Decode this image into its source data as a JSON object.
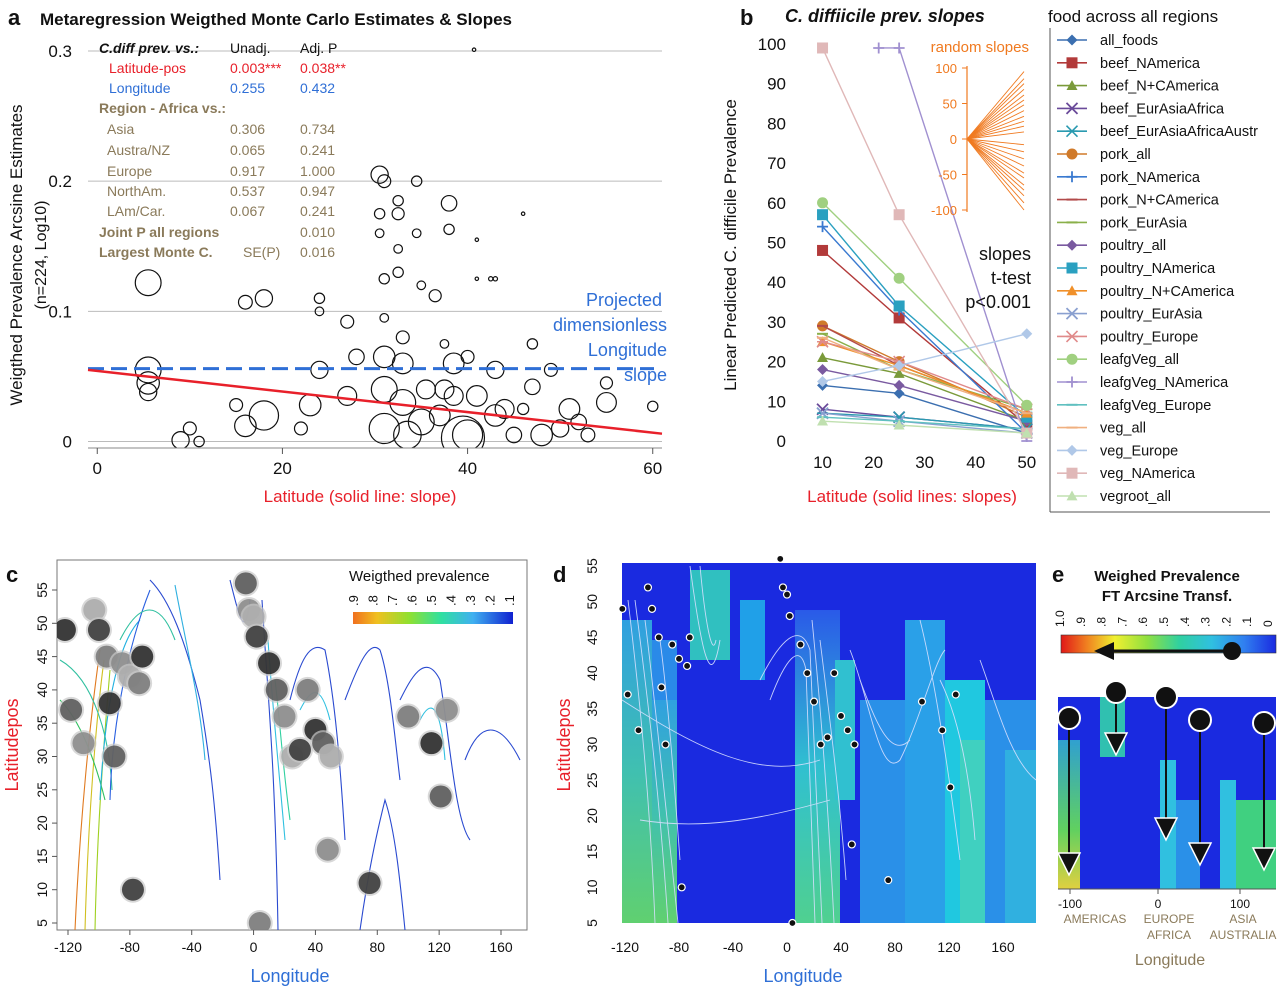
{
  "panel_a": {
    "letter": "a",
    "title": "Metaregression Weigthed Monte Carlo Estimates & Slopes",
    "ylabel1": "Weigthed Prevalence Arcsine  Estimates",
    "ylabel2": "(n=224, Log10)",
    "xlabel": "Latitude (solid line: slope)",
    "xticks": [
      "0",
      "20",
      "40",
      "60"
    ],
    "yticks": [
      "0",
      "0.1",
      "0.2",
      "0.3"
    ],
    "table": {
      "header": [
        "C.diff prev. vs.:",
        "Unadj.",
        "Adj. P"
      ],
      "rows": [
        {
          "label": "Latitude-pos",
          "unadj": "0.003***",
          "adj": "0.038**",
          "color": "#e8202a"
        },
        {
          "label": "Longitude",
          "unadj": "0.255",
          "adj": "0.432",
          "color": "#2f6fd6"
        }
      ],
      "region_header": "Region - Africa vs.:",
      "region_rows": [
        {
          "label": "Asia",
          "unadj": "0.306",
          "adj": "0.734"
        },
        {
          "label": "Austra/NZ",
          "unadj": "0.065",
          "adj": "0.241"
        },
        {
          "label": "Europe",
          "unadj": "0.917",
          "adj": "1.000"
        },
        {
          "label": "NorthAm.",
          "unadj": "0.537",
          "adj": "0.947"
        },
        {
          "label": "LAm/Car.",
          "unadj": "0.067",
          "adj": "0.241"
        }
      ],
      "joint_label": "Joint P all regions",
      "joint_value": "0.010",
      "mc_label": "Largest Monte C.",
      "mc_sub": "SE(P)",
      "mc_value": "0.016",
      "text_color": "#8a7a5a"
    },
    "annotation": [
      "Projected",
      "dimensionless",
      "Longitude",
      "slope"
    ]
  },
  "panel_b": {
    "letter": "b",
    "title": "C. diffiicile prev. slopes",
    "ylabel": "Linear Predicted C. difficile Prevalence",
    "xlabel": "Latitude (solid lines: slopes)",
    "xticks": [
      "10",
      "20",
      "30",
      "40",
      "50"
    ],
    "yticks": [
      "0",
      "10",
      "20",
      "30",
      "40",
      "50",
      "60",
      "70",
      "80",
      "90",
      "100"
    ],
    "inset_title": "random slopes",
    "inset_ticks": [
      "100",
      "50",
      "0",
      "-50",
      "-100"
    ],
    "ttest": [
      "slopes",
      "t-test",
      "p<0.001"
    ]
  },
  "legend": {
    "title": "food across all regions",
    "items": [
      {
        "name": "all_foods",
        "color": "#3b6fb0",
        "marker": "diamond"
      },
      {
        "name": "beef_NAmerica",
        "color": "#b23a3a",
        "marker": "square"
      },
      {
        "name": "beef_N+CAmerica",
        "color": "#7a9a3a",
        "marker": "triangle"
      },
      {
        "name": "beef_EurAsiaAfrica",
        "color": "#6a4a9a",
        "marker": "x"
      },
      {
        "name": "beef_EurAsiaAfricaAustr",
        "color": "#2a9ab0",
        "marker": "star"
      },
      {
        "name": "pork_all",
        "color": "#d07a2a",
        "marker": "circle"
      },
      {
        "name": "pork_NAmerica",
        "color": "#3a7ad0",
        "marker": "plus"
      },
      {
        "name": "pork_N+CAmerica",
        "color": "#b24a4a",
        "marker": "dash"
      },
      {
        "name": "pork_EurAsia",
        "color": "#8ab04a",
        "marker": "dash"
      },
      {
        "name": "poultry_all",
        "color": "#7a5aa0",
        "marker": "diamond"
      },
      {
        "name": "poultry_NAmerica",
        "color": "#2aa0c0",
        "marker": "square"
      },
      {
        "name": "poultry_N+CAmerica",
        "color": "#f0902a",
        "marker": "triangle"
      },
      {
        "name": "poultry_EurAsia",
        "color": "#8aa0d0",
        "marker": "x"
      },
      {
        "name": "poultry_Europe",
        "color": "#e08a8a",
        "marker": "star"
      },
      {
        "name": "leafgVeg_all",
        "color": "#a0d080",
        "marker": "circle"
      },
      {
        "name": "leafgVeg_NAmerica",
        "color": "#a090d0",
        "marker": "plus"
      },
      {
        "name": "leafgVeg_Europe",
        "color": "#60c0c0",
        "marker": "dash"
      },
      {
        "name": "veg_all",
        "color": "#f0b080",
        "marker": "dash"
      },
      {
        "name": "veg_Europe",
        "color": "#b0c8e8",
        "marker": "diamond"
      },
      {
        "name": "veg_NAmerica",
        "color": "#e0b8b8",
        "marker": "square"
      },
      {
        "name": "vegroot_all",
        "color": "#c0e0b0",
        "marker": "triangle"
      }
    ]
  },
  "panel_c": {
    "letter": "c",
    "legend_title": "Weigthed prevalence",
    "legend_ticks": [
      ".9",
      ".8",
      ".7",
      ".6",
      ".5",
      ".4",
      ".3",
      ".2",
      ".1"
    ],
    "ylabel": "Latitudepos",
    "xlabel": "Longitude",
    "xticks": [
      "-120",
      "-80",
      "-40",
      "0",
      "40",
      "80",
      "120",
      "160"
    ],
    "yticks": [
      "5",
      "10",
      "15",
      "20",
      "25",
      "30",
      "35",
      "40",
      "45",
      "50",
      "55"
    ]
  },
  "panel_d": {
    "letter": "d",
    "ylabel": "Latitudepos",
    "xlabel": "Longitude",
    "xticks": [
      "-120",
      "-80",
      "-40",
      "0",
      "40",
      "80",
      "120",
      "160"
    ],
    "yticks": [
      "5",
      "10",
      "15",
      "20",
      "25",
      "30",
      "35",
      "40",
      "45",
      "50",
      "55"
    ]
  },
  "panel_e": {
    "letter": "e",
    "title": [
      "Weighed Prevalence",
      "FT Arcsine Transf."
    ],
    "scale_ticks": [
      "1.0",
      ".9",
      ".8",
      ".7",
      ".6",
      ".5",
      ".4",
      ".3",
      ".2",
      ".1",
      "0"
    ],
    "xticks": [
      "-100",
      "0",
      "100"
    ],
    "regions": [
      "AMERICAS",
      "EUROPE",
      "AFRICA",
      "ASIA",
      "AUSTRALIA"
    ],
    "xlabel": "Longitude"
  },
  "chart_data": [
    {
      "type": "scatter",
      "title": "Metaregression Weigthed Monte Carlo Estimates & Slopes",
      "xlabel": "Latitude (solid line: slope)",
      "ylabel": "Weigthed Prevalence Arcsine Estimates (n=224, Log10)",
      "xlim": [
        -1,
        61
      ],
      "ylim": [
        -0.005,
        0.31
      ],
      "grid": true,
      "slope_line": {
        "x": [
          -1,
          61
        ],
        "y": [
          0.055,
          0.006
        ],
        "color": "#e8202a"
      },
      "projected_longitude_slope": {
        "y": 0.056,
        "color": "#2f6fd6"
      },
      "points": [
        {
          "x": 5.5,
          "y": 0.122,
          "w": 3
        },
        {
          "x": 5.5,
          "y": 0.055,
          "w": 3
        },
        {
          "x": 5.5,
          "y": 0.045,
          "w": 2.6
        },
        {
          "x": 5.5,
          "y": 0.038,
          "w": 2
        },
        {
          "x": 9,
          "y": 0.001,
          "w": 2
        },
        {
          "x": 10,
          "y": 0.01,
          "w": 1.5
        },
        {
          "x": 11,
          "y": 0.0,
          "w": 1.2
        },
        {
          "x": 16,
          "y": 0.107,
          "w": 1.6
        },
        {
          "x": 18,
          "y": 0.11,
          "w": 2
        },
        {
          "x": 15,
          "y": 0.028,
          "w": 1.5
        },
        {
          "x": 16,
          "y": 0.012,
          "w": 2.5
        },
        {
          "x": 18,
          "y": 0.02,
          "w": 3.4
        },
        {
          "x": 24,
          "y": 0.11,
          "w": 1.2
        },
        {
          "x": 24,
          "y": 0.1,
          "w": 1
        },
        {
          "x": 24,
          "y": 0.055,
          "w": 2
        },
        {
          "x": 23,
          "y": 0.028,
          "w": 2.5
        },
        {
          "x": 22,
          "y": 0.01,
          "w": 1.5
        },
        {
          "x": 27,
          "y": 0.092,
          "w": 1.5
        },
        {
          "x": 28,
          "y": 0.065,
          "w": 1.8
        },
        {
          "x": 27,
          "y": 0.035,
          "w": 2.2
        },
        {
          "x": 30.5,
          "y": 0.205,
          "w": 2
        },
        {
          "x": 31,
          "y": 0.2,
          "w": 1.5
        },
        {
          "x": 30.5,
          "y": 0.175,
          "w": 1.2
        },
        {
          "x": 30.5,
          "y": 0.16,
          "w": 1
        },
        {
          "x": 31,
          "y": 0.125,
          "w": 1.2
        },
        {
          "x": 31,
          "y": 0.095,
          "w": 1
        },
        {
          "x": 31,
          "y": 0.065,
          "w": 2.5
        },
        {
          "x": 31,
          "y": 0.04,
          "w": 3
        },
        {
          "x": 31,
          "y": 0.01,
          "w": 3.5
        },
        {
          "x": 32.5,
          "y": 0.185,
          "w": 1.2
        },
        {
          "x": 32.5,
          "y": 0.175,
          "w": 1.4
        },
        {
          "x": 32.5,
          "y": 0.148,
          "w": 1
        },
        {
          "x": 32.5,
          "y": 0.13,
          "w": 1.2
        },
        {
          "x": 33,
          "y": 0.08,
          "w": 1.5
        },
        {
          "x": 33,
          "y": 0.06,
          "w": 2.4
        },
        {
          "x": 33,
          "y": 0.03,
          "w": 3
        },
        {
          "x": 33.5,
          "y": 0.005,
          "w": 3.2
        },
        {
          "x": 34.5,
          "y": 0.2,
          "w": 1.2
        },
        {
          "x": 34.5,
          "y": 0.16,
          "w": 1
        },
        {
          "x": 35,
          "y": 0.12,
          "w": 1
        },
        {
          "x": 35.5,
          "y": 0.04,
          "w": 2.2
        },
        {
          "x": 35,
          "y": 0.015,
          "w": 3
        },
        {
          "x": 36.5,
          "y": 0.112,
          "w": 1.4
        },
        {
          "x": 37.5,
          "y": 0.075,
          "w": 1
        },
        {
          "x": 37.5,
          "y": 0.04,
          "w": 2.2
        },
        {
          "x": 37,
          "y": 0.02,
          "w": 2.4
        },
        {
          "x": 38,
          "y": 0.183,
          "w": 1.8
        },
        {
          "x": 38,
          "y": 0.163,
          "w": 1.2
        },
        {
          "x": 38.5,
          "y": 0.06,
          "w": 2.4
        },
        {
          "x": 38.5,
          "y": 0.035,
          "w": 2.2
        },
        {
          "x": 39.5,
          "y": 0.003,
          "w": 5
        },
        {
          "x": 40,
          "y": 0.005,
          "w": 3.5
        },
        {
          "x": 41,
          "y": 0.035,
          "w": 2.4
        },
        {
          "x": 40,
          "y": 0.065,
          "w": 1.5
        },
        {
          "x": 40.7,
          "y": 0.301,
          "w": 0.4
        },
        {
          "x": 41,
          "y": 0.125,
          "w": 0.4
        },
        {
          "x": 41,
          "y": 0.155,
          "w": 0.4
        },
        {
          "x": 42.5,
          "y": 0.125,
          "w": 0.5
        },
        {
          "x": 43,
          "y": 0.125,
          "w": 0.5
        },
        {
          "x": 43,
          "y": 0.055,
          "w": 2
        },
        {
          "x": 43,
          "y": 0.02,
          "w": 2.5
        },
        {
          "x": 44,
          "y": 0.025,
          "w": 2.2
        },
        {
          "x": 45,
          "y": 0.005,
          "w": 1.8
        },
        {
          "x": 46,
          "y": 0.175,
          "w": 0.4
        },
        {
          "x": 47,
          "y": 0.075,
          "w": 1.2
        },
        {
          "x": 47,
          "y": 0.042,
          "w": 1.8
        },
        {
          "x": 46,
          "y": 0.025,
          "w": 1.3
        },
        {
          "x": 49,
          "y": 0.055,
          "w": 1.5
        },
        {
          "x": 48,
          "y": 0.005,
          "w": 2.5
        },
        {
          "x": 50,
          "y": 0.01,
          "w": 2
        },
        {
          "x": 51,
          "y": 0.025,
          "w": 2.4
        },
        {
          "x": 52,
          "y": 0.015,
          "w": 1.8
        },
        {
          "x": 53,
          "y": 0.005,
          "w": 1.6
        },
        {
          "x": 55,
          "y": 0.03,
          "w": 2.3
        },
        {
          "x": 55,
          "y": 0.045,
          "w": 1.4
        },
        {
          "x": 60,
          "y": 0.027,
          "w": 1.2
        }
      ]
    },
    {
      "type": "line",
      "title": "C. diffiicile prev. slopes",
      "xlabel": "Latitude (solid lines: slopes)",
      "ylabel": "Linear Predicted C. difficile Prevalence",
      "x": [
        10,
        25,
        50
      ],
      "xlim": [
        5,
        52
      ],
      "ylim": [
        0,
        100
      ],
      "series": [
        {
          "name": "all_foods",
          "values": [
            14,
            12,
            2
          ]
        },
        {
          "name": "beef_NAmerica",
          "values": [
            48,
            31,
            4
          ]
        },
        {
          "name": "beef_N+CAmerica",
          "values": [
            21,
            17,
            5
          ]
        },
        {
          "name": "beef_EurAsiaAfrica",
          "values": [
            8,
            6,
            3
          ]
        },
        {
          "name": "beef_EurAsiaAfricaAustr",
          "values": [
            7,
            6,
            3
          ]
        },
        {
          "name": "pork_all",
          "values": [
            29,
            20,
            6
          ]
        },
        {
          "name": "pork_NAmerica",
          "values": [
            54,
            33,
            2
          ]
        },
        {
          "name": "pork_N+CAmerica",
          "values": [
            29,
            19,
            7
          ]
        },
        {
          "name": "pork_EurAsia",
          "values": [
            27,
            18,
            8
          ]
        },
        {
          "name": "poultry_all",
          "values": [
            18,
            14,
            5
          ]
        },
        {
          "name": "poultry_NAmerica",
          "values": [
            57,
            34,
            6
          ]
        },
        {
          "name": "poultry_N+CAmerica",
          "values": [
            25,
            19,
            7
          ]
        },
        {
          "name": "poultry_EurAsia",
          "values": [
            7,
            5,
            2
          ]
        },
        {
          "name": "poultry_Europe",
          "values": [
            25,
            20,
            8
          ]
        },
        {
          "name": "leafgVeg_all",
          "values": [
            60,
            41,
            9
          ]
        },
        {
          "name": "leafgVeg_NAmerica",
          "values": [
            null,
            99,
            0
          ]
        },
        {
          "name": "leafgVeg_Europe",
          "values": [
            6,
            5,
            3
          ]
        },
        {
          "name": "veg_all",
          "values": [
            26,
            18,
            7
          ]
        },
        {
          "name": "veg_Europe",
          "values": [
            15,
            19,
            27
          ]
        },
        {
          "name": "veg_NAmerica",
          "values": [
            99,
            57,
            2
          ]
        },
        {
          "name": "vegroot_all",
          "values": [
            5,
            4,
            2
          ]
        }
      ],
      "inset": {
        "title": "random slopes",
        "ylim": [
          -100,
          100
        ]
      }
    },
    {
      "type": "heatmap",
      "xlabel": "Longitude",
      "ylabel": "Latitudepos",
      "xlim": [
        -130,
        175
      ],
      "ylim": [
        5,
        57
      ],
      "legend": "Weigthed prevalence",
      "sites": [
        {
          "lon": -122,
          "lat": 49
        },
        {
          "lon": -118,
          "lat": 37
        },
        {
          "lon": -110,
          "lat": 32
        },
        {
          "lon": -103,
          "lat": 52
        },
        {
          "lon": -100,
          "lat": 49
        },
        {
          "lon": -95,
          "lat": 45
        },
        {
          "lon": -93,
          "lat": 38
        },
        {
          "lon": -90,
          "lat": 30
        },
        {
          "lon": -85,
          "lat": 44
        },
        {
          "lon": -80,
          "lat": 42
        },
        {
          "lon": -78,
          "lat": 10
        },
        {
          "lon": -74,
          "lat": 41
        },
        {
          "lon": -72,
          "lat": 45
        },
        {
          "lon": -5,
          "lat": 56
        },
        {
          "lon": -3,
          "lat": 52
        },
        {
          "lon": 0,
          "lat": 51
        },
        {
          "lon": 2,
          "lat": 48
        },
        {
          "lon": 4,
          "lat": 5
        },
        {
          "lon": 10,
          "lat": 44
        },
        {
          "lon": 15,
          "lat": 40
        },
        {
          "lon": 20,
          "lat": 36
        },
        {
          "lon": 25,
          "lat": 30
        },
        {
          "lon": 30,
          "lat": 31
        },
        {
          "lon": 35,
          "lat": 40
        },
        {
          "lon": 40,
          "lat": 34
        },
        {
          "lon": 45,
          "lat": 32
        },
        {
          "lon": 48,
          "lat": 16
        },
        {
          "lon": 50,
          "lat": 30
        },
        {
          "lon": 75,
          "lat": 11
        },
        {
          "lon": 100,
          "lat": 36
        },
        {
          "lon": 115,
          "lat": 32
        },
        {
          "lon": 121,
          "lat": 24
        },
        {
          "lon": 125,
          "lat": 37
        }
      ]
    },
    {
      "type": "heatmap",
      "xlabel": "Longitude",
      "ylabel": "Latitudepos",
      "xlim": [
        -130,
        180
      ],
      "ylim": [
        5,
        57
      ]
    },
    {
      "type": "heatmap",
      "title": "Weighed Prevalence FT Arcsine Transf.",
      "xlabel": "Longitude",
      "scale": [
        1.0,
        0.0
      ],
      "regions": [
        "AMERICAS",
        "EUROPE AFRICA",
        "ASIA AUSTRALIA"
      ]
    }
  ]
}
